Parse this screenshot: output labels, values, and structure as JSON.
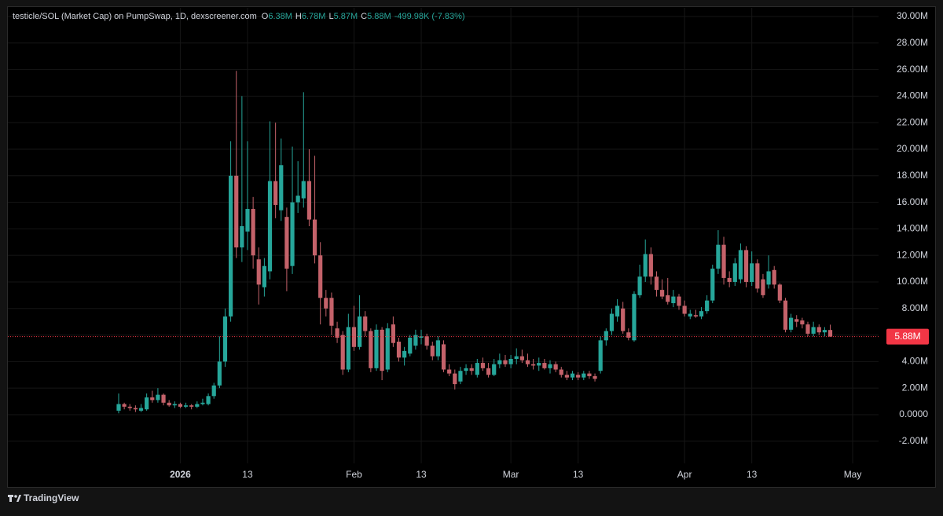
{
  "chart_data": {
    "type": "candlestick",
    "title": "testicle/SOL (Market Cap) on PumpSwap, 1D, dexscreener.com",
    "ohlc_header": [
      {
        "key": "O",
        "label": "6.38M"
      },
      {
        "key": "H",
        "label": "6.78M"
      },
      {
        "key": "L",
        "label": "5.87M"
      },
      {
        "key": "C",
        "label": "5.88M"
      }
    ],
    "change_label": "-499.98K (-7.83%)",
    "last_price_label": "5.88M",
    "brand": "TradingView",
    "up_color": "#26a69a",
    "down_color": "#c4626a",
    "grid": true,
    "ylim": [
      -3.67,
      30.65
    ],
    "yticks": [
      {
        "value": 30,
        "label": "30.00M"
      },
      {
        "value": 28,
        "label": "28.00M"
      },
      {
        "value": 26,
        "label": "26.00M"
      },
      {
        "value": 24,
        "label": "24.00M"
      },
      {
        "value": 22,
        "label": "22.00M"
      },
      {
        "value": 20,
        "label": "20.00M"
      },
      {
        "value": 18,
        "label": "18.00M"
      },
      {
        "value": 16,
        "label": "16.00M"
      },
      {
        "value": 14,
        "label": "14.00M"
      },
      {
        "value": 12,
        "label": "12.00M"
      },
      {
        "value": 10,
        "label": "10.00M"
      },
      {
        "value": 8,
        "label": "8.00M"
      },
      {
        "value": 6,
        "label": "6.00M"
      },
      {
        "value": 4,
        "label": "4.00M"
      },
      {
        "value": 2,
        "label": "2.00M"
      },
      {
        "value": 0,
        "label": "0.0000"
      },
      {
        "value": -2,
        "label": "-2.00M"
      }
    ],
    "xticks": [
      {
        "value": "2026-01-01",
        "label": "2026"
      },
      {
        "value": "2026-01-13",
        "label": "13"
      },
      {
        "value": "2026-02-01",
        "label": "Feb"
      },
      {
        "value": "2026-02-13",
        "label": "13"
      },
      {
        "value": "2026-03-01",
        "label": "Mar"
      },
      {
        "value": "2026-03-13",
        "label": "13"
      },
      {
        "value": "2026-04-01",
        "label": "Apr"
      },
      {
        "value": "2026-04-13",
        "label": "13"
      },
      {
        "value": "2026-05-01",
        "label": "May"
      }
    ],
    "x": [
      "2025-12-21",
      "2025-12-22",
      "2025-12-23",
      "2025-12-24",
      "2025-12-25",
      "2025-12-26",
      "2025-12-27",
      "2025-12-28",
      "2025-12-29",
      "2025-12-30",
      "2025-12-31",
      "2026-01-01",
      "2026-01-02",
      "2026-01-03",
      "2026-01-04",
      "2026-01-05",
      "2026-01-06",
      "2026-01-07",
      "2026-01-08",
      "2026-01-09",
      "2026-01-10",
      "2026-01-11",
      "2026-01-12",
      "2026-01-13",
      "2026-01-14",
      "2026-01-15",
      "2026-01-16",
      "2026-01-17",
      "2026-01-18",
      "2026-01-19",
      "2026-01-20",
      "2026-01-21",
      "2026-01-22",
      "2026-01-23",
      "2026-01-24",
      "2026-01-25",
      "2026-01-26",
      "2026-01-27",
      "2026-01-28",
      "2026-01-29",
      "2026-01-30",
      "2026-01-31",
      "2026-02-01",
      "2026-02-02",
      "2026-02-03",
      "2026-02-04",
      "2026-02-05",
      "2026-02-06",
      "2026-02-07",
      "2026-02-08",
      "2026-02-09",
      "2026-02-10",
      "2026-02-11",
      "2026-02-12",
      "2026-02-13",
      "2026-02-14",
      "2026-02-15",
      "2026-02-16",
      "2026-02-17",
      "2026-02-18",
      "2026-02-19",
      "2026-02-20",
      "2026-02-21",
      "2026-02-22",
      "2026-02-23",
      "2026-02-24",
      "2026-02-25",
      "2026-02-26",
      "2026-02-27",
      "2026-02-28",
      "2026-03-01",
      "2026-03-02",
      "2026-03-03",
      "2026-03-04",
      "2026-03-05",
      "2026-03-06",
      "2026-03-07",
      "2026-03-08",
      "2026-03-09",
      "2026-03-10",
      "2026-03-11",
      "2026-03-12",
      "2026-03-13",
      "2026-03-14",
      "2026-03-15",
      "2026-03-16",
      "2026-03-17",
      "2026-03-18",
      "2026-03-19",
      "2026-03-20",
      "2026-03-21",
      "2026-03-22",
      "2026-03-23",
      "2026-03-24",
      "2026-03-25",
      "2026-03-26",
      "2026-03-27",
      "2026-03-28",
      "2026-03-29",
      "2026-03-30",
      "2026-03-31",
      "2026-04-01",
      "2026-04-02",
      "2026-04-03",
      "2026-04-04",
      "2026-04-05",
      "2026-04-06",
      "2026-04-07",
      "2026-04-08",
      "2026-04-09",
      "2026-04-10",
      "2026-04-11",
      "2026-04-12",
      "2026-04-13",
      "2026-04-14",
      "2026-04-15",
      "2026-04-16",
      "2026-04-17",
      "2026-04-18",
      "2026-04-19",
      "2026-04-20",
      "2026-04-21",
      "2026-04-22",
      "2026-04-23",
      "2026-04-24",
      "2026-04-25",
      "2026-04-26",
      "2026-04-27"
    ],
    "open": [
      0.3,
      0.8,
      0.6,
      0.5,
      0.3,
      0.4,
      1.3,
      1.1,
      1.5,
      0.9,
      0.7,
      0.8,
      0.6,
      0.7,
      0.6,
      0.8,
      0.8,
      1.4,
      2.2,
      4.0,
      7.4,
      18.0,
      12.6,
      13.8,
      15.5,
      11.7,
      9.6,
      10.8,
      17.6,
      15.4,
      14.9,
      11.2,
      16.0,
      16.3,
      17.6,
      14.7,
      12.0,
      8.8,
      8.8,
      6.5,
      6.0,
      3.4,
      6.6,
      5.1,
      7.4,
      6.3,
      3.5,
      6.4,
      3.4,
      6.8,
      5.5,
      4.3,
      4.6,
      5.2,
      5.8,
      5.9,
      5.2,
      4.4,
      5.3,
      3.4,
      3.1,
      2.5,
      3.3,
      3.5,
      3.0,
      3.9,
      3.5,
      3.0,
      3.8,
      4.1,
      3.8,
      4.2,
      4.4,
      4.1,
      3.8,
      3.7,
      3.9,
      3.5,
      3.8,
      3.4,
      3.0,
      2.8,
      3.0,
      2.8,
      3.1,
      2.9,
      3.3,
      5.6,
      6.3,
      7.4,
      8.0,
      6.2,
      5.6,
      9.0,
      10.4,
      12.1,
      10.4,
      9.4,
      9.0,
      8.4,
      8.9,
      8.2,
      7.4,
      7.5,
      7.4,
      7.8,
      8.6,
      11.0,
      12.8,
      10.3,
      10.0,
      10.2,
      12.4,
      10.0,
      11.4,
      10.2,
      9.8,
      10.9,
      9.8,
      8.6,
      6.4,
      7.2,
      7.1,
      6.8,
      6.1,
      6.6,
      6.2,
      6.38
    ],
    "high": [
      1.6,
      0.9,
      0.8,
      0.7,
      0.8,
      1.6,
      1.8,
      2.0,
      1.6,
      1.1,
      1.0,
      0.9,
      0.9,
      0.8,
      1.0,
      1.2,
      1.6,
      2.4,
      5.9,
      8.0,
      20.6,
      25.9,
      24.0,
      20.6,
      16.4,
      12.6,
      11.8,
      22.1,
      22.0,
      20.8,
      15.6,
      20.2,
      19.1,
      24.3,
      20.0,
      19.5,
      13.0,
      9.4,
      9.2,
      7.0,
      6.3,
      7.6,
      8.2,
      9.0,
      7.8,
      6.5,
      6.8,
      6.6,
      6.9,
      7.4,
      5.8,
      5.1,
      6.0,
      6.4,
      6.4,
      6.1,
      5.5,
      5.9,
      5.6,
      3.8,
      3.4,
      3.6,
      3.8,
      3.8,
      4.2,
      4.3,
      3.9,
      4.2,
      4.6,
      4.5,
      4.5,
      5.0,
      4.9,
      4.6,
      4.2,
      4.3,
      4.2,
      4.1,
      4.0,
      3.6,
      3.3,
      3.3,
      3.2,
      3.3,
      3.3,
      3.1,
      5.9,
      6.5,
      8.0,
      8.7,
      8.5,
      6.5,
      9.3,
      11.3,
      13.2,
      12.6,
      10.8,
      10.2,
      10.3,
      9.4,
      9.1,
      8.6,
      7.9,
      7.9,
      8.1,
      9.0,
      11.3,
      13.9,
      13.4,
      10.8,
      11.8,
      12.9,
      12.7,
      12.3,
      11.7,
      10.6,
      12.0,
      11.2,
      9.9,
      8.8,
      7.6,
      7.5,
      7.3,
      7.0,
      7.0,
      6.8,
      6.6,
      6.78
    ],
    "low": [
      0.1,
      0.4,
      0.3,
      0.2,
      0.2,
      0.3,
      0.9,
      0.9,
      0.7,
      0.6,
      0.5,
      0.5,
      0.5,
      0.4,
      0.5,
      0.7,
      0.7,
      1.2,
      2.0,
      3.6,
      7.0,
      11.8,
      11.5,
      12.4,
      11.0,
      8.3,
      8.9,
      10.2,
      14.8,
      14.6,
      9.3,
      10.6,
      15.2,
      15.6,
      14.2,
      11.4,
      6.8,
      7.4,
      6.0,
      5.4,
      3.0,
      3.2,
      4.8,
      4.9,
      5.9,
      3.2,
      3.3,
      2.6,
      3.2,
      5.1,
      4.0,
      3.7,
      4.4,
      4.9,
      5.3,
      4.9,
      4.1,
      4.1,
      3.2,
      2.9,
      1.9,
      2.3,
      3.0,
      3.0,
      2.8,
      3.3,
      2.8,
      2.9,
      3.5,
      3.6,
      3.5,
      3.8,
      3.9,
      3.6,
      3.4,
      3.3,
      3.4,
      3.1,
      3.2,
      2.8,
      2.6,
      2.6,
      2.6,
      2.6,
      2.7,
      2.5,
      3.1,
      5.2,
      6.0,
      7.0,
      6.1,
      5.6,
      5.5,
      8.8,
      10.0,
      9.8,
      8.9,
      8.7,
      8.3,
      8.1,
      7.9,
      7.4,
      7.2,
      7.3,
      7.2,
      7.6,
      8.4,
      10.6,
      9.8,
      9.6,
      9.7,
      9.9,
      9.6,
      9.7,
      9.2,
      8.8,
      9.5,
      9.5,
      8.4,
      6.2,
      6.2,
      6.6,
      6.5,
      5.9,
      5.9,
      6.0,
      5.9,
      5.87
    ],
    "close": [
      0.8,
      0.6,
      0.5,
      0.4,
      0.5,
      1.3,
      1.1,
      1.5,
      0.9,
      0.7,
      0.8,
      0.6,
      0.7,
      0.6,
      0.8,
      0.9,
      1.4,
      2.2,
      4.0,
      7.4,
      18.0,
      12.6,
      14.2,
      15.5,
      12.0,
      9.8,
      11.2,
      17.6,
      15.8,
      18.8,
      11.0,
      16.0,
      16.5,
      17.6,
      14.7,
      12.0,
      8.8,
      8.0,
      6.7,
      5.8,
      3.4,
      6.6,
      5.1,
      7.4,
      6.3,
      3.5,
      6.4,
      3.3,
      6.5,
      5.4,
      4.3,
      4.8,
      5.8,
      6.0,
      5.9,
      5.2,
      4.4,
      5.6,
      3.4,
      3.1,
      2.3,
      3.3,
      3.5,
      3.3,
      3.9,
      3.5,
      3.0,
      3.8,
      4.1,
      3.8,
      4.2,
      4.4,
      4.1,
      3.8,
      3.7,
      3.9,
      3.5,
      3.8,
      3.4,
      3.0,
      2.8,
      3.1,
      2.8,
      3.1,
      2.9,
      2.7,
      5.6,
      6.3,
      7.6,
      8.2,
      6.3,
      5.8,
      9.1,
      10.4,
      12.1,
      10.4,
      9.4,
      8.9,
      8.5,
      8.9,
      8.2,
      7.6,
      7.6,
      7.4,
      7.8,
      8.6,
      11.0,
      12.8,
      10.3,
      10.0,
      11.4,
      12.4,
      10.0,
      11.4,
      9.5,
      9.0,
      10.8,
      9.8,
      8.6,
      6.4,
      7.3,
      7.0,
      6.8,
      6.1,
      6.6,
      6.2,
      6.38,
      5.88
    ]
  }
}
